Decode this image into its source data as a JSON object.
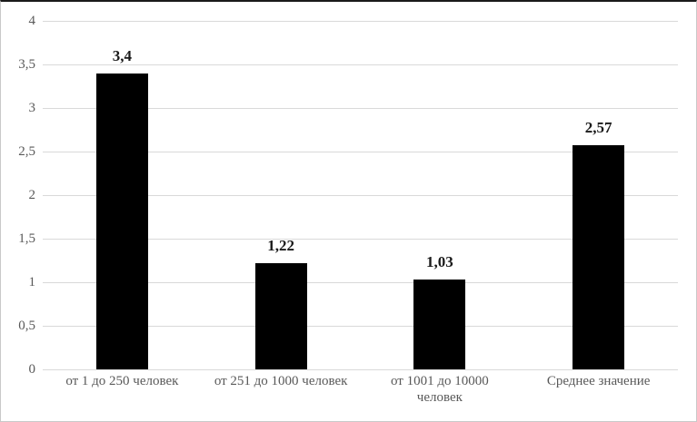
{
  "chart_data": {
    "type": "bar",
    "title": "",
    "xlabel": "",
    "ylabel": "",
    "categories": [
      "от 1 до 250 человек",
      "от 251 до 1000 человек",
      "от 1001 до 10000 человек",
      "Среднее значение"
    ],
    "values": [
      3.4,
      1.22,
      1.03,
      2.57
    ],
    "value_labels": [
      "3,4",
      "1,22",
      "1,03",
      "2,57"
    ],
    "ylim": [
      0,
      4
    ],
    "y_ticks": [
      0,
      0.5,
      1,
      1.5,
      2,
      2.5,
      3,
      3.5,
      4
    ],
    "y_tick_labels": [
      "0",
      "0,5",
      "1",
      "1,5",
      "2",
      "2,5",
      "3",
      "3,5",
      "4"
    ],
    "grid": "horizontal",
    "legend_position": "none",
    "bar_color": "#000000",
    "gridline_color": "#d9d9d9",
    "axis_text_color": "#595959",
    "value_label_color": "#1a1a1a",
    "background_color": "#ffffff"
  }
}
